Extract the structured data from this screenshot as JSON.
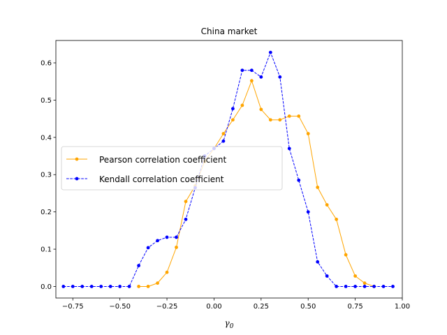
{
  "chart_data": {
    "type": "line",
    "title": "China market",
    "xlabel": "γ0",
    "xlabel_main": "γ",
    "xlabel_sub": "0",
    "ylabel": "",
    "xlim": [
      -0.84,
      1.0
    ],
    "ylim": [
      -0.031,
      0.66
    ],
    "xticks": [
      -0.75,
      -0.5,
      -0.25,
      0.0,
      0.25,
      0.5,
      0.75,
      1.0
    ],
    "xtick_labels": [
      "−0.75",
      "−0.50",
      "−0.25",
      "0.00",
      "0.25",
      "0.50",
      "0.75",
      "1.00"
    ],
    "yticks": [
      0.0,
      0.1,
      0.2,
      0.3,
      0.4,
      0.5,
      0.6
    ],
    "ytick_labels": [
      "0.0",
      "0.1",
      "0.2",
      "0.3",
      "0.4",
      "0.5",
      "0.6"
    ],
    "grid": false,
    "legend_position": "center-left",
    "series": [
      {
        "name": "Pearson correlation coefficient",
        "color": "#ffa500",
        "linestyle": "solid",
        "marker": "circle",
        "x": [
          -0.4,
          -0.35,
          -0.3,
          -0.25,
          -0.2,
          -0.15,
          -0.1,
          -0.05,
          0.0,
          0.05,
          0.1,
          0.15,
          0.2,
          0.25,
          0.3,
          0.35,
          0.4,
          0.45,
          0.5,
          0.55,
          0.6,
          0.65,
          0.7,
          0.75,
          0.8,
          0.85
        ],
        "y": [
          0.0,
          0.0,
          0.009,
          0.038,
          0.105,
          0.228,
          0.27,
          0.335,
          0.37,
          0.41,
          0.447,
          0.486,
          0.552,
          0.475,
          0.447,
          0.447,
          0.457,
          0.457,
          0.41,
          0.266,
          0.219,
          0.18,
          0.085,
          0.028,
          0.009,
          0.0
        ]
      },
      {
        "name": "Kendall correlation coefficient",
        "color": "#0000ff",
        "linestyle": "dashed",
        "marker": "circle",
        "x": [
          -0.8,
          -0.75,
          -0.7,
          -0.65,
          -0.6,
          -0.55,
          -0.5,
          -0.45,
          -0.4,
          -0.35,
          -0.3,
          -0.25,
          -0.2,
          -0.15,
          -0.1,
          -0.05,
          0.0,
          0.05,
          0.1,
          0.15,
          0.2,
          0.25,
          0.3,
          0.35,
          0.4,
          0.45,
          0.5,
          0.55,
          0.6,
          0.65,
          0.7,
          0.75,
          0.8,
          0.85,
          0.9,
          0.95
        ],
        "y": [
          0.0,
          0.0,
          0.0,
          0.0,
          0.0,
          0.0,
          0.0,
          0.0,
          0.056,
          0.104,
          0.123,
          0.132,
          0.132,
          0.18,
          0.265,
          0.35,
          0.37,
          0.39,
          0.477,
          0.58,
          0.58,
          0.562,
          0.628,
          0.562,
          0.37,
          0.285,
          0.2,
          0.066,
          0.028,
          0.0,
          0.0,
          0.0,
          0.0,
          0.0,
          0.0,
          0.0
        ]
      }
    ]
  }
}
